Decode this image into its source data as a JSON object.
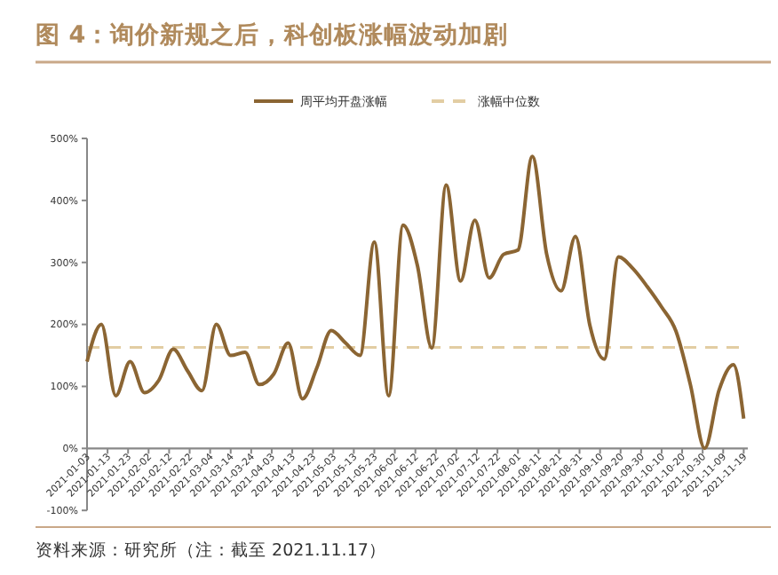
{
  "chart_data": {
    "type": "line",
    "title": "图 4：询价新规之后，科创板涨幅波动加剧",
    "annotations": [
      "资料来源：研究所（注：截至 2021.11.17）"
    ],
    "x": [
      "2021-01-03",
      "2021-01-10",
      "2021-01-17",
      "2021-01-24",
      "2021-01-31",
      "2021-02-07",
      "2021-02-14",
      "2021-02-21",
      "2021-02-28",
      "2021-03-07",
      "2021-03-14",
      "2021-03-21",
      "2021-03-28",
      "2021-04-04",
      "2021-04-11",
      "2021-04-18",
      "2021-04-25",
      "2021-05-02",
      "2021-05-09",
      "2021-05-16",
      "2021-05-23",
      "2021-05-30",
      "2021-06-06",
      "2021-06-13",
      "2021-06-20",
      "2021-06-27",
      "2021-07-04",
      "2021-07-11",
      "2021-07-18",
      "2021-07-25",
      "2021-08-01",
      "2021-08-08",
      "2021-08-15",
      "2021-08-22",
      "2021-08-29",
      "2021-09-05",
      "2021-09-12",
      "2021-09-19",
      "2021-09-26",
      "2021-10-03",
      "2021-10-10",
      "2021-10-17",
      "2021-10-24",
      "2021-10-31",
      "2021-11-07",
      "2021-11-14",
      "2021-11-19"
    ],
    "series": [
      {
        "name": "周平均开盘涨幅",
        "color": "#8b6533",
        "values": [
          140,
          200,
          85,
          140,
          90,
          110,
          160,
          125,
          93,
          200,
          150,
          155,
          103,
          120,
          170,
          80,
          130,
          190,
          170,
          150,
          333,
          85,
          360,
          295,
          162,
          425,
          270,
          368,
          275,
          313,
          320,
          471,
          313,
          254,
          342,
          199,
          144,
          309,
          290,
          261,
          228,
          189,
          103,
          0,
          94,
          135,
          48
        ]
      }
    ],
    "ref_lines": [
      {
        "axis": "y",
        "value": 163,
        "label": "涨幅中位数",
        "color": "#e2cda3",
        "line_style": "dashed"
      }
    ],
    "xlim": [
      "2021-01-03",
      "2021-11-21"
    ],
    "xticks": [
      {
        "value": "2021-01-03",
        "label": "2021-01-03"
      },
      {
        "value": "2021-01-13",
        "label": "2021-01-13"
      },
      {
        "value": "2021-01-23",
        "label": "2021-01-23"
      },
      {
        "value": "2021-02-02",
        "label": "2021-02-02"
      },
      {
        "value": "2021-02-12",
        "label": "2021-02-12"
      },
      {
        "value": "2021-02-22",
        "label": "2021-02-22"
      },
      {
        "value": "2021-03-04",
        "label": "2021-03-04"
      },
      {
        "value": "2021-03-14",
        "label": "2021-03-14"
      },
      {
        "value": "2021-03-24",
        "label": "2021-03-24"
      },
      {
        "value": "2021-04-03",
        "label": "2021-04-03"
      },
      {
        "value": "2021-04-13",
        "label": "2021-04-13"
      },
      {
        "value": "2021-04-23",
        "label": "2021-04-23"
      },
      {
        "value": "2021-05-03",
        "label": "2021-05-03"
      },
      {
        "value": "2021-05-13",
        "label": "2021-05-13"
      },
      {
        "value": "2021-05-23",
        "label": "2021-05-23"
      },
      {
        "value": "2021-06-02",
        "label": "2021-06-02"
      },
      {
        "value": "2021-06-12",
        "label": "2021-06-12"
      },
      {
        "value": "2021-06-22",
        "label": "2021-06-22"
      },
      {
        "value": "2021-07-02",
        "label": "2021-07-02"
      },
      {
        "value": "2021-07-12",
        "label": "2021-07-12"
      },
      {
        "value": "2021-07-22",
        "label": "2021-07-22"
      },
      {
        "value": "2021-08-01",
        "label": "2021-08-01"
      },
      {
        "value": "2021-08-11",
        "label": "2021-08-11"
      },
      {
        "value": "2021-08-21",
        "label": "2021-08-21"
      },
      {
        "value": "2021-08-31",
        "label": "2021-08-31"
      },
      {
        "value": "2021-09-10",
        "label": "2021-09-10"
      },
      {
        "value": "2021-09-20",
        "label": "2021-09-20"
      },
      {
        "value": "2021-09-30",
        "label": "2021-09-30"
      },
      {
        "value": "2021-10-10",
        "label": "2021-10-10"
      },
      {
        "value": "2021-10-20",
        "label": "2021-10-20"
      },
      {
        "value": "2021-10-30",
        "label": "2021-10-30"
      },
      {
        "value": "2021-11-09",
        "label": "2021-11-09"
      },
      {
        "value": "2021-11-19",
        "label": "2021-11-19"
      }
    ],
    "ylim": [
      -100,
      500
    ],
    "yticks": [
      {
        "value": -100,
        "label": "-100%"
      },
      {
        "value": 0,
        "label": "0%"
      },
      {
        "value": 100,
        "label": "100%"
      },
      {
        "value": 200,
        "label": "200%"
      },
      {
        "value": 300,
        "label": "300%"
      },
      {
        "value": 400,
        "label": "400%"
      },
      {
        "value": 500,
        "label": "500%"
      }
    ],
    "legend": "top",
    "grid": false,
    "line_style": "solid",
    "marker": "none"
  }
}
